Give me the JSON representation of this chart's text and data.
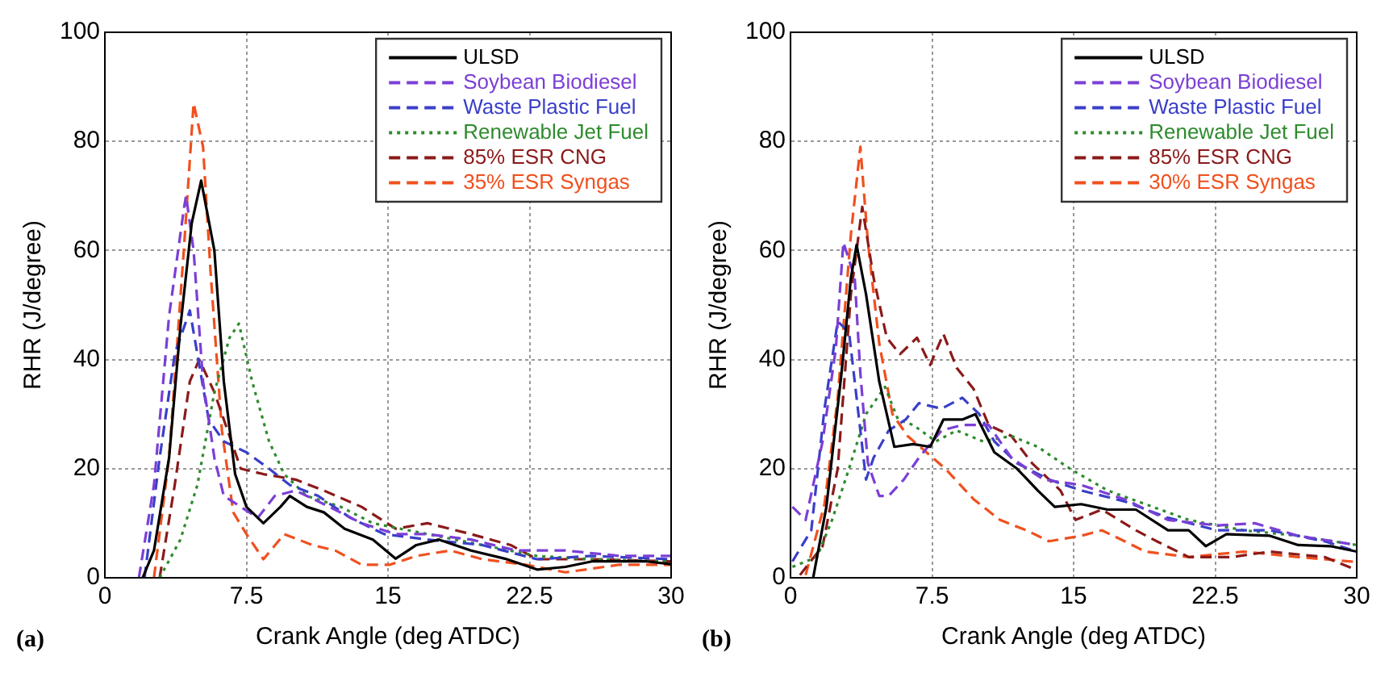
{
  "chart_data": [
    {
      "type": "line",
      "xlabel": "Crank Angle (deg ATDC)",
      "ylabel": "RHR (J/degree)",
      "annotations": [
        "(a)"
      ],
      "xlim": [
        0,
        30
      ],
      "xticks": [
        0,
        7.5,
        15,
        22.5,
        30
      ],
      "ylim": [
        0,
        100
      ],
      "yticks": [
        0,
        20,
        40,
        60,
        80,
        100
      ],
      "grid": true,
      "legend": "top right",
      "marker": "none",
      "series": [
        {
          "name": "ULSD",
          "color": "#000000",
          "line_style": "solid",
          "x": [
            2,
            2.6,
            3.4,
            4,
            4.6,
            5.1,
            5.8,
            6.3,
            6.9,
            7.5,
            8.4,
            9.3,
            9.8,
            10.7,
            11.6,
            12.7,
            14.2,
            15.4,
            16.5,
            17.7,
            19.4,
            21.2,
            22.9,
            24.4,
            25.8,
            28.7,
            30
          ],
          "values": [
            0,
            5,
            22,
            46,
            65,
            72.8,
            60,
            36,
            19,
            13,
            10,
            13,
            15,
            13,
            12,
            9,
            7,
            3.5,
            6,
            7,
            5,
            3.5,
            1.5,
            2,
            3,
            3,
            2.5
          ]
        },
        {
          "name": "Soybean Biodiesel",
          "color": "#7b3fd6",
          "line_style": "dashed",
          "x": [
            1.8,
            2.6,
            3.4,
            4.2,
            4.3,
            4.7,
            5.2,
            5.8,
            6.3,
            7.2,
            8.1,
            9,
            10.1,
            11.9,
            13.6,
            15.4,
            17.1,
            19.4,
            21.8,
            24.4,
            27.3,
            30
          ],
          "values": [
            0,
            17,
            48,
            68,
            70,
            60,
            36,
            22,
            15,
            13,
            11,
            15,
            16,
            13,
            10,
            8,
            8,
            7,
            5,
            5,
            4,
            4
          ]
        },
        {
          "name": "Waste Plastic Fuel",
          "color": "#3a3fc8",
          "line_style": "dashed",
          "x": [
            2.1,
            2.9,
            3.7,
            4.5,
            5.5,
            6.3,
            7.5,
            8.7,
            9.8,
            11.3,
            13,
            14.8,
            17.1,
            20,
            22.9,
            25.8,
            30
          ],
          "values": [
            0,
            22,
            41,
            49,
            29,
            25,
            23,
            20,
            17,
            15,
            11,
            8,
            7,
            6,
            3.4,
            4,
            3.4
          ]
        },
        {
          "name": "Renewable Jet Fuel",
          "color": "#2e8b2e",
          "line_style": "dotted",
          "x": [
            2.9,
            4,
            4.9,
            5.8,
            6.6,
            7.1,
            7.8,
            8.7,
            9.5,
            10.7,
            12.5,
            14.2,
            17.1,
            20,
            22.9,
            25.8,
            30
          ],
          "values": [
            0,
            7,
            17,
            34,
            44,
            46.6,
            36,
            25,
            19,
            15,
            13,
            10,
            8,
            6,
            4,
            3.4,
            3
          ]
        },
        {
          "name": "85% ESR CNG",
          "color": "#8b1a1a",
          "line_style": "dashed",
          "x": [
            2.9,
            3.7,
            4.5,
            5,
            5.8,
            6.5,
            7.2,
            8.4,
            10.1,
            11.6,
            13.6,
            15.4,
            17.1,
            19.4,
            21.5,
            22.9,
            25.8,
            30
          ],
          "values": [
            0,
            17,
            36,
            40,
            34,
            27,
            20,
            19,
            18,
            16,
            13,
            9,
            10,
            8,
            6,
            3.4,
            3.4,
            3
          ]
        },
        {
          "name": "35% ESR Syngas",
          "color": "#f0501e",
          "line_style": "dashed",
          "x": [
            2.6,
            3.4,
            4.2,
            4.7,
            5.2,
            5.6,
            6.2,
            6.8,
            7.5,
            8.4,
            9.5,
            11,
            12.2,
            13.6,
            15.1,
            16.5,
            18.3,
            20,
            22.3,
            24.4,
            27.3,
            30
          ],
          "values": [
            0,
            22,
            61,
            87,
            79,
            56,
            27,
            12,
            8,
            3.4,
            8,
            6,
            5,
            2.4,
            2.4,
            4,
            5,
            3.4,
            2.4,
            1,
            2.4,
            2.4
          ]
        }
      ]
    },
    {
      "type": "line",
      "xlabel": "Crank Angle (deg ATDC)",
      "ylabel": "RHR (J/degree)",
      "annotations": [
        "(b)"
      ],
      "xlim": [
        0,
        30
      ],
      "xticks": [
        0,
        7.5,
        15,
        22.5,
        30
      ],
      "ylim": [
        0,
        100
      ],
      "yticks": [
        0,
        20,
        40,
        60,
        80,
        100
      ],
      "grid": true,
      "legend": "top right",
      "marker": "none",
      "series": [
        {
          "name": "ULSD",
          "color": "#000000",
          "line_style": "solid",
          "x": [
            1.2,
            1.9,
            2.7,
            3.2,
            3.5,
            4,
            4.7,
            5.5,
            6.5,
            7.4,
            8.1,
            9.1,
            9.8,
            10.8,
            12,
            13.1,
            14,
            15.4,
            16.8,
            18.3,
            20,
            21.1,
            22,
            23.1,
            25.4,
            26.9,
            28.6,
            30
          ],
          "values": [
            0,
            13,
            37.5,
            55,
            61,
            52,
            36,
            24,
            24.5,
            24,
            29,
            29,
            30,
            23,
            20,
            16,
            13,
            13.5,
            12.5,
            12.5,
            8.7,
            8.7,
            5.8,
            8,
            7.7,
            6,
            5.8,
            4.8
          ]
        },
        {
          "name": "Soybean Biodiesel",
          "color": "#7b3fd6",
          "line_style": "dashed",
          "x": [
            0.1,
            0.8,
            1.7,
            2.4,
            2.8,
            3.4,
            3.7,
            4.1,
            4.7,
            5.2,
            6,
            6.8,
            8,
            9.1,
            10.5,
            11.7,
            13.4,
            15.4,
            17.7,
            20,
            22.6,
            24.6,
            26.9,
            30
          ],
          "values": [
            13,
            10.6,
            25,
            42,
            61.5,
            55,
            37.5,
            21,
            15,
            15,
            18,
            22,
            27,
            28,
            28,
            22,
            18,
            17,
            14.4,
            10.6,
            9.6,
            10,
            7.7,
            6
          ]
        },
        {
          "name": "Waste Plastic Fuel",
          "color": "#3a3fc8",
          "line_style": "dashed",
          "x": [
            0.1,
            1.1,
            1.8,
            2.5,
            3.1,
            3.5,
            4,
            4.4,
            5.2,
            6.1,
            6.8,
            8,
            9.1,
            10,
            10.8,
            12,
            13.7,
            15.4,
            17.7,
            20,
            22.6,
            25.4,
            28.3,
            30
          ],
          "values": [
            3,
            8.7,
            31,
            47,
            45,
            33,
            18,
            22,
            27,
            29,
            32,
            31,
            33,
            30,
            25,
            21,
            18,
            16,
            14,
            11,
            8.7,
            8.7,
            6.7,
            4.8
          ]
        },
        {
          "name": "Renewable Jet Fuel",
          "color": "#2e8b2e",
          "line_style": "dotted",
          "x": [
            0.1,
            1.4,
            2.2,
            3.1,
            4,
            5,
            5.7,
            6.5,
            7.7,
            8.8,
            10.2,
            11.7,
            13.1,
            14.8,
            16.8,
            18.8,
            21.1,
            24,
            26.9,
            30
          ],
          "values": [
            2,
            3.8,
            10.6,
            20,
            30,
            35,
            29,
            28,
            25,
            27,
            25,
            26,
            24,
            20,
            16,
            13.5,
            10.6,
            8.7,
            7.7,
            6
          ]
        },
        {
          "name": "85% ESR CNG",
          "color": "#8b1a1a",
          "line_style": "dashed",
          "x": [
            0.5,
            1.7,
            2.5,
            3.2,
            3.8,
            4.4,
            5.1,
            5.8,
            6.7,
            7.4,
            8.1,
            8.8,
            9.7,
            10.5,
            11.7,
            12.8,
            14.3,
            15.1,
            16.5,
            18.3,
            19.4,
            21.1,
            23.4,
            25.4,
            28.3,
            30
          ],
          "values": [
            0.5,
            5.8,
            20,
            52,
            68,
            55,
            44,
            41,
            44,
            39,
            44.7,
            38.5,
            34.6,
            28,
            26,
            21,
            16,
            10.6,
            12.5,
            8.7,
            6.7,
            3.8,
            3.8,
            4.8,
            3.8,
            1.4
          ]
        },
        {
          "name": "30% ESR Syngas",
          "color": "#f0501e",
          "line_style": "dashed",
          "x": [
            0.8,
            1.8,
            2.5,
            3.2,
            3.7,
            4.1,
            4.7,
            5.4,
            6.2,
            7.2,
            8.2,
            9.7,
            11.1,
            12.5,
            13.7,
            15.4,
            16.5,
            17.7,
            18.8,
            21.1,
            24,
            26.9,
            30
          ],
          "values": [
            0.5,
            13.5,
            33,
            63,
            79,
            61.5,
            43,
            30,
            26,
            23,
            20,
            14.4,
            10.6,
            8.7,
            6.7,
            7.7,
            8.7,
            6.7,
            4.8,
            3.8,
            4.8,
            3.8,
            2.9
          ]
        }
      ]
    }
  ]
}
